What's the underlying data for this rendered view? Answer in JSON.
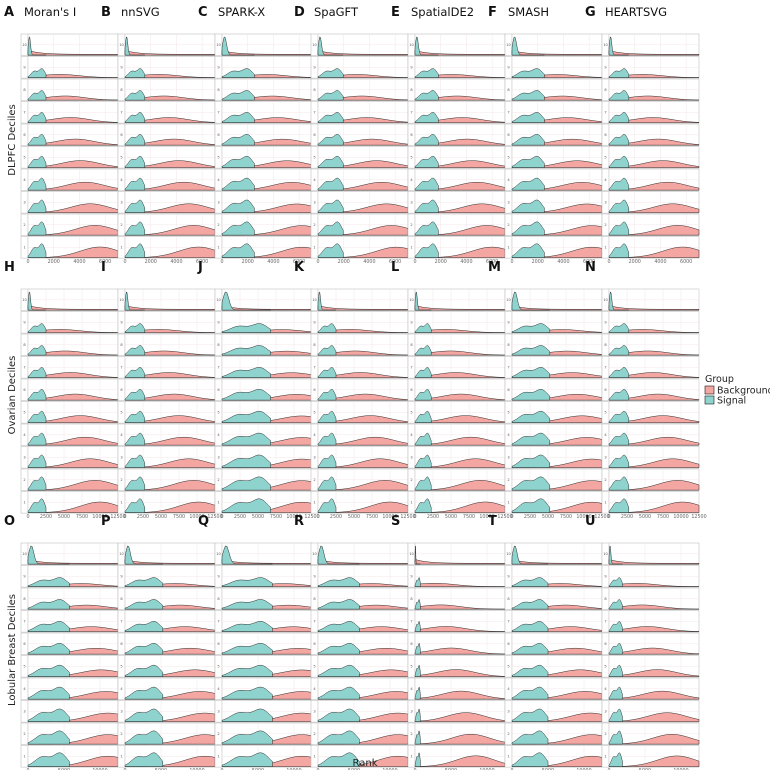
{
  "chart_data": {
    "type": "area",
    "legend": {
      "title": "Group",
      "placement": "right",
      "entries": [
        {
          "name": "Background",
          "color": "#F4A7A2"
        },
        {
          "name": "Signal",
          "color": "#8FD3CF"
        }
      ]
    },
    "xlabel": "Rank",
    "deciles": [
      "10",
      "9",
      "8",
      "7",
      "6",
      "5",
      "4",
      "3",
      "2",
      "1"
    ],
    "colors": {
      "background": "#F4A7A2",
      "signal": "#8FD3CF",
      "line": "#1a1a1a"
    },
    "rows": [
      {
        "ylabel": "DLPFC Deciles",
        "xmax": 7000,
        "ticks": [
          "0",
          "2000",
          "4000",
          "6000"
        ],
        "tick_values": [
          0,
          2000,
          4000,
          6000
        ],
        "panels": [
          {
            "letter": "A",
            "method": "Moran's I"
          },
          {
            "letter": "B",
            "method": "nnSVG"
          },
          {
            "letter": "C",
            "method": "SPARK-X"
          },
          {
            "letter": "D",
            "method": "SpaGFT"
          },
          {
            "letter": "E",
            "method": "SpatialDE2"
          },
          {
            "letter": "F",
            "method": "SMASH"
          },
          {
            "letter": "G",
            "method": "HEARTSVG"
          }
        ]
      },
      {
        "ylabel": "Ovarian Deciles",
        "xmax": 12500,
        "ticks": [
          "0",
          "2500",
          "5000",
          "7500",
          "10000",
          "12500"
        ],
        "tick_values": [
          0,
          2500,
          5000,
          7500,
          10000,
          12500
        ],
        "panels": [
          {
            "letter": "H",
            "method": ""
          },
          {
            "letter": "I",
            "method": ""
          },
          {
            "letter": "J",
            "method": ""
          },
          {
            "letter": "K",
            "method": ""
          },
          {
            "letter": "L",
            "method": ""
          },
          {
            "letter": "M",
            "method": ""
          },
          {
            "letter": "N",
            "method": ""
          }
        ]
      },
      {
        "ylabel": "Lobular Breast Deciles",
        "xmax": 12500,
        "ticks": [
          "0",
          "5000",
          "10000"
        ],
        "tick_values": [
          0,
          5000,
          10000
        ],
        "panels": [
          {
            "letter": "O",
            "method": ""
          },
          {
            "letter": "P",
            "method": ""
          },
          {
            "letter": "Q",
            "method": ""
          },
          {
            "letter": "R",
            "method": ""
          },
          {
            "letter": "S",
            "method": ""
          },
          {
            "letter": "T",
            "method": ""
          },
          {
            "letter": "U",
            "method": ""
          }
        ]
      }
    ]
  }
}
